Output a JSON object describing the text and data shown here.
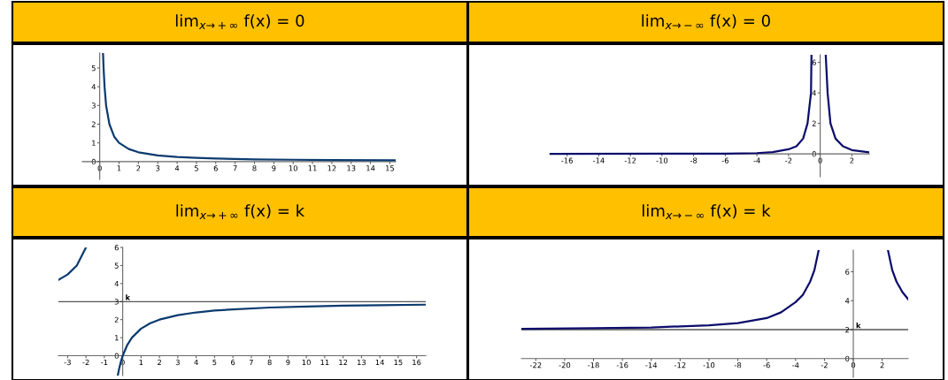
{
  "chart_data": [
    {
      "type": "line",
      "title": "lim$_{x→+∞}$ f(x) = 0",
      "xlim": [
        -0.9,
        15.3
      ],
      "ylim": [
        -0.95,
        5.8
      ],
      "xticks": [
        0,
        1,
        2,
        3,
        4,
        5,
        6,
        7,
        8,
        9,
        10,
        11,
        12,
        13,
        14,
        15
      ],
      "yticks": [
        0,
        1,
        2,
        3,
        4,
        5
      ],
      "grid": false,
      "series": [
        {
          "color": "#0b3b6f",
          "x": [
            0.17,
            0.2,
            0.25,
            0.33,
            0.5,
            0.75,
            1,
            1.5,
            2,
            3,
            4,
            5,
            6,
            8,
            10,
            12,
            15.3
          ],
          "values": [
            5.8,
            5,
            4,
            3,
            2,
            1.33,
            1,
            0.67,
            0.5,
            0.33,
            0.25,
            0.2,
            0.17,
            0.12,
            0.1,
            0.08,
            0.07
          ]
        }
      ]
    },
    {
      "type": "line",
      "title": "lim$_{x→−∞}$ f(x) = 0",
      "xlim": [
        -17.1,
        3.1
      ],
      "ylim": [
        -1.5,
        6.5
      ],
      "xticks": [
        -16,
        -14,
        -12,
        -10,
        -8,
        -6,
        -4,
        -2,
        0,
        2
      ],
      "yticks": [
        0,
        2,
        4,
        6
      ],
      "grid": false,
      "series": [
        {
          "color": "#0c0c6b",
          "x": [
            -17.1,
            -10,
            -6,
            -4,
            -3,
            -2,
            -1.5,
            -1.08,
            -0.8,
            -0.58,
            -0.55
          ],
          "values": [
            0,
            0.01,
            0.02,
            0.05,
            0.12,
            0.3,
            0.5,
            1,
            2,
            4,
            6.5
          ]
        },
        {
          "color": "#0c0c6b",
          "x": [
            0.35,
            0.47,
            0.65,
            0.97,
            1.44,
            2,
            3.1
          ],
          "values": [
            6.5,
            4,
            2,
            1,
            0.5,
            0.25,
            0.1
          ]
        }
      ]
    },
    {
      "type": "line",
      "title": "lim$_{x→+∞}$ f(x) = k",
      "xlim": [
        -3.5,
        16.5
      ],
      "ylim": [
        -1.1,
        6
      ],
      "xticks": [
        -3,
        -2,
        -1,
        0,
        1,
        2,
        3,
        4,
        5,
        6,
        7,
        8,
        9,
        10,
        11,
        12,
        13,
        14,
        15,
        16
      ],
      "yticks": [
        0,
        1,
        2,
        3,
        4,
        5,
        6
      ],
      "grid": false,
      "ref_lines": [
        {
          "axis": "y",
          "value": 3,
          "label": "k",
          "color": "#555555"
        }
      ],
      "series": [
        {
          "color": "#0b3b6f",
          "x": [
            -3.5,
            -3,
            -2.5,
            -2
          ],
          "values": [
            4.2,
            4.5,
            5,
            6
          ]
        },
        {
          "color": "#0b3b6f",
          "x": [
            -0.27,
            -0.2,
            -0.1,
            0,
            0.25,
            0.5,
            1,
            1.5,
            2,
            3,
            4,
            5,
            6,
            8,
            10,
            12,
            14,
            16.5
          ],
          "values": [
            -1.1,
            -0.75,
            -0.33,
            0,
            0.6,
            1,
            1.5,
            1.8,
            2,
            2.25,
            2.4,
            2.5,
            2.57,
            2.67,
            2.73,
            2.77,
            2.8,
            2.83
          ]
        }
      ]
    },
    {
      "type": "line",
      "title": "lim$_{x→−∞}$ f(x) = k",
      "xlim": [
        -23,
        3.8
      ],
      "ylim": [
        -1.3,
        7.5
      ],
      "xticks": [
        -22,
        -20,
        -18,
        -16,
        -14,
        -12,
        -10,
        -8,
        -6,
        -4,
        -2,
        0,
        2
      ],
      "yticks": [
        0,
        2,
        4,
        6
      ],
      "grid": false,
      "ref_lines": [
        {
          "axis": "y",
          "value": 2,
          "label": "k",
          "color": "#555555"
        }
      ],
      "series": [
        {
          "color": "#0c0c6b",
          "x": [
            -23,
            -18,
            -14,
            -10,
            -8,
            -6,
            -5,
            -4,
            -3.5,
            -3,
            -2.7,
            -2.4
          ],
          "values": [
            2.06,
            2.1,
            2.15,
            2.3,
            2.45,
            2.8,
            3.2,
            3.9,
            4.4,
            5.3,
            6.1,
            7.5
          ]
        },
        {
          "color": "#0c0c6b",
          "x": [
            2.4,
            2.7,
            3,
            3.4,
            3.8
          ],
          "values": [
            7.5,
            6.1,
            5.3,
            4.6,
            4.1
          ]
        }
      ]
    }
  ]
}
